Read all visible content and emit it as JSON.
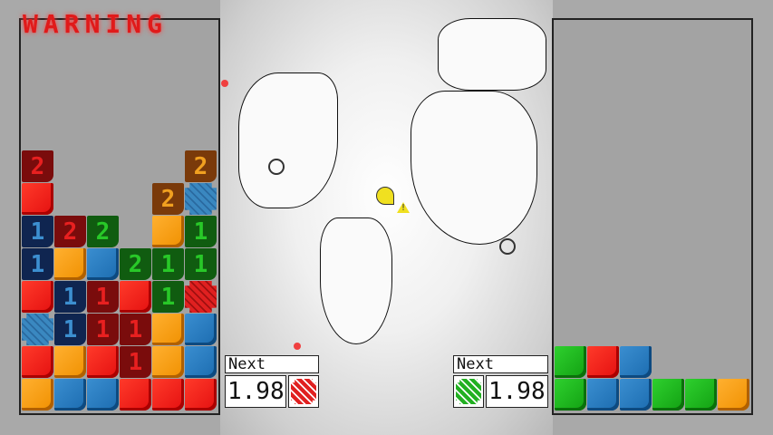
{
  "warning_text": "WARNING",
  "left_board": {
    "rows": [
      [
        "r2",
        "",
        "",
        "",
        "",
        "o2"
      ],
      [
        "R",
        "",
        "",
        "",
        "o2",
        "Bx"
      ],
      [
        "b1",
        "r2",
        "g2",
        "",
        "O",
        "g1"
      ],
      [
        "b1",
        "O",
        "B",
        "g2",
        "g1",
        "g1"
      ],
      [
        "R",
        "b1",
        "r1",
        "R",
        "g1",
        "Rx"
      ],
      [
        "Bx",
        "b1",
        "r1",
        "r1",
        "O",
        "B"
      ],
      [
        "R",
        "O",
        "R",
        "r1",
        "O",
        "B"
      ],
      [
        "O",
        "B",
        "B",
        "R",
        "R",
        "R"
      ]
    ]
  },
  "right_board": {
    "rows": [
      [
        "G",
        "R",
        "B",
        "",
        "",
        ""
      ],
      [
        "G",
        "B",
        "B",
        "G",
        "G",
        "O"
      ]
    ]
  },
  "left_next": {
    "label": "Next",
    "value": "1.98",
    "piece_color": "#e02020"
  },
  "right_next": {
    "label": "Next",
    "value": "1.98",
    "piece_color": "#22b022"
  },
  "colors": {
    "red": "#e41010",
    "orange": "#f09000",
    "blue": "#1c6cb0",
    "green": "#12a012",
    "warning": "#e01a1a"
  }
}
